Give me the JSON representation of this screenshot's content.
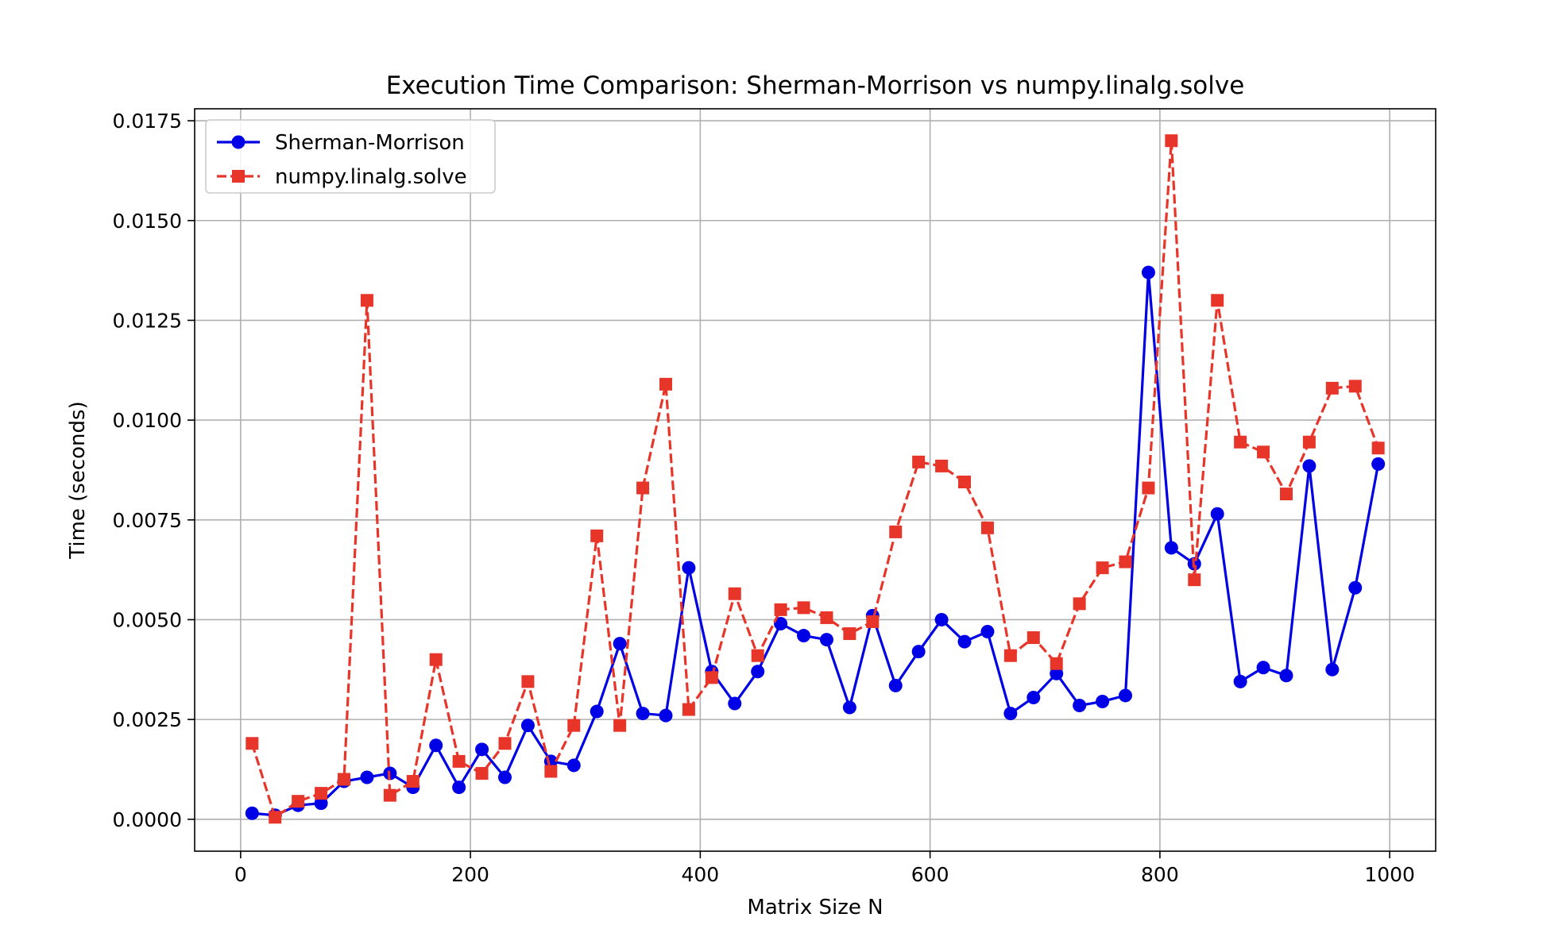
{
  "chart_data": {
    "type": "line",
    "title": "Execution Time Comparison: Sherman-Morrison vs numpy.linalg.solve",
    "xlabel": "Matrix Size N",
    "ylabel": "Time (seconds)",
    "xlim": [
      -40,
      1040
    ],
    "ylim": [
      -0.0008,
      0.0178
    ],
    "xticks": [
      0,
      200,
      400,
      600,
      800,
      1000
    ],
    "yticks": [
      0.0,
      0.0025,
      0.005,
      0.0075,
      0.01,
      0.0125,
      0.015,
      0.0175
    ],
    "xtick_labels": [
      "0",
      "200",
      "400",
      "600",
      "800",
      "1000"
    ],
    "ytick_labels": [
      "0.0000",
      "0.0025",
      "0.0050",
      "0.0075",
      "0.0100",
      "0.0125",
      "0.0150",
      "0.0175"
    ],
    "grid": true,
    "legend": "top-left",
    "x": [
      10,
      30,
      50,
      70,
      90,
      110,
      130,
      150,
      170,
      190,
      210,
      230,
      250,
      270,
      290,
      310,
      330,
      350,
      370,
      390,
      410,
      430,
      450,
      470,
      490,
      510,
      530,
      550,
      570,
      590,
      610,
      630,
      650,
      670,
      690,
      710,
      730,
      750,
      770,
      790,
      810,
      830,
      850,
      870,
      890,
      910,
      930,
      950,
      970,
      990
    ],
    "series": [
      {
        "name": "Sherman-Morrison",
        "color": "#0000e6",
        "marker": "circle",
        "line": "solid",
        "values": [
          0.00015,
          0.0001,
          0.00035,
          0.0004,
          0.00095,
          0.00105,
          0.00115,
          0.0008,
          0.00185,
          0.0008,
          0.00175,
          0.00105,
          0.00235,
          0.00145,
          0.00135,
          0.0027,
          0.0044,
          0.00265,
          0.0026,
          0.0063,
          0.0037,
          0.0029,
          0.0037,
          0.0049,
          0.0046,
          0.0045,
          0.0028,
          0.0051,
          0.00335,
          0.0042,
          0.005,
          0.00445,
          0.0047,
          0.00265,
          0.00305,
          0.00365,
          0.00285,
          0.00295,
          0.0031,
          0.0137,
          0.0068,
          0.0064,
          0.00765,
          0.00345,
          0.0038,
          0.0036,
          0.00885,
          0.00375,
          0.0058,
          0.0089
        ]
      },
      {
        "name": "numpy.linalg.solve",
        "color": "#e8352a",
        "marker": "square",
        "line": "dashed",
        "values": [
          0.0019,
          5e-05,
          0.00045,
          0.00065,
          0.001,
          0.013,
          0.0006,
          0.00095,
          0.004,
          0.00145,
          0.00115,
          0.0019,
          0.00345,
          0.0012,
          0.00235,
          0.0071,
          0.00235,
          0.0083,
          0.0109,
          0.00275,
          0.00355,
          0.00565,
          0.0041,
          0.00525,
          0.0053,
          0.00505,
          0.00465,
          0.00495,
          0.0072,
          0.00895,
          0.00885,
          0.00845,
          0.0073,
          0.0041,
          0.00455,
          0.0039,
          0.0054,
          0.0063,
          0.00645,
          0.0083,
          0.017,
          0.006,
          0.013,
          0.00945,
          0.0092,
          0.00815,
          0.00945,
          0.0108,
          0.01085,
          0.0093
        ]
      }
    ]
  }
}
